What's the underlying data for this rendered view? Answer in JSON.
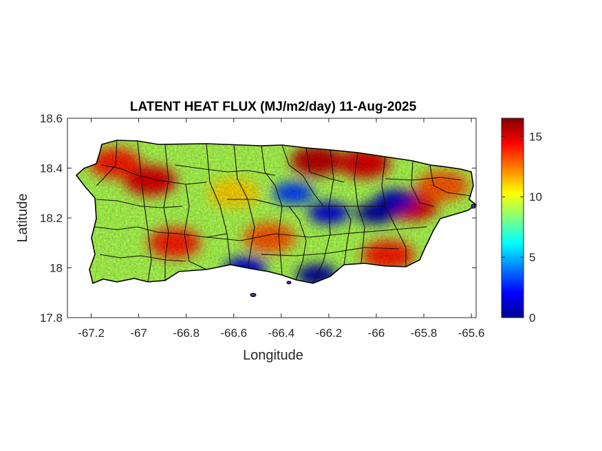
{
  "chart_data": {
    "type": "heatmap",
    "title": "LATENT HEAT FLUX (MJ/m2/day) 11-Aug-2025",
    "xlabel": "Longitude",
    "ylabel": "Latitude",
    "xlim": [
      -67.3,
      -65.58
    ],
    "ylim": [
      17.8,
      18.6
    ],
    "x_ticks": [
      "-67.2",
      "-67",
      "-66.8",
      "-66.6",
      "-66.4",
      "-66.2",
      "-66",
      "-65.8",
      "-65.6"
    ],
    "y_ticks": [
      "17.8",
      "18",
      "18.2",
      "18.4",
      "18.6"
    ],
    "colorbar": {
      "colormap": "jet",
      "range": [
        0,
        16.5
      ],
      "ticks": [
        "0",
        "5",
        "10",
        "15"
      ]
    },
    "region": "Puerto Rico municipalities",
    "hotspots": [
      {
        "lon": -66.95,
        "lat": 18.35,
        "value": 15
      },
      {
        "lon": -67.1,
        "lat": 18.42,
        "value": 14
      },
      {
        "lon": -66.25,
        "lat": 18.43,
        "value": 15.5
      },
      {
        "lon": -66.05,
        "lat": 18.42,
        "value": 15
      },
      {
        "lon": -65.85,
        "lat": 18.25,
        "value": 15
      },
      {
        "lon": -65.95,
        "lat": 18.05,
        "value": 14
      },
      {
        "lon": -66.85,
        "lat": 18.1,
        "value": 14
      },
      {
        "lon": -66.45,
        "lat": 18.12,
        "value": 13
      },
      {
        "lon": -66.6,
        "lat": 18.3,
        "value": 11
      },
      {
        "lon": -65.72,
        "lat": 18.33,
        "value": 13
      }
    ],
    "coldspots": [
      {
        "lon": -66.25,
        "lat": 17.97,
        "value": 0.5
      },
      {
        "lon": -66.55,
        "lat": 18.0,
        "value": 1.5
      },
      {
        "lon": -66.0,
        "lat": 18.22,
        "value": 0.5
      },
      {
        "lon": -66.2,
        "lat": 18.22,
        "value": 1.5
      },
      {
        "lon": -66.35,
        "lat": 18.3,
        "value": 3
      },
      {
        "lon": -65.92,
        "lat": 18.27,
        "value": 1
      }
    ],
    "background_value": 9
  }
}
